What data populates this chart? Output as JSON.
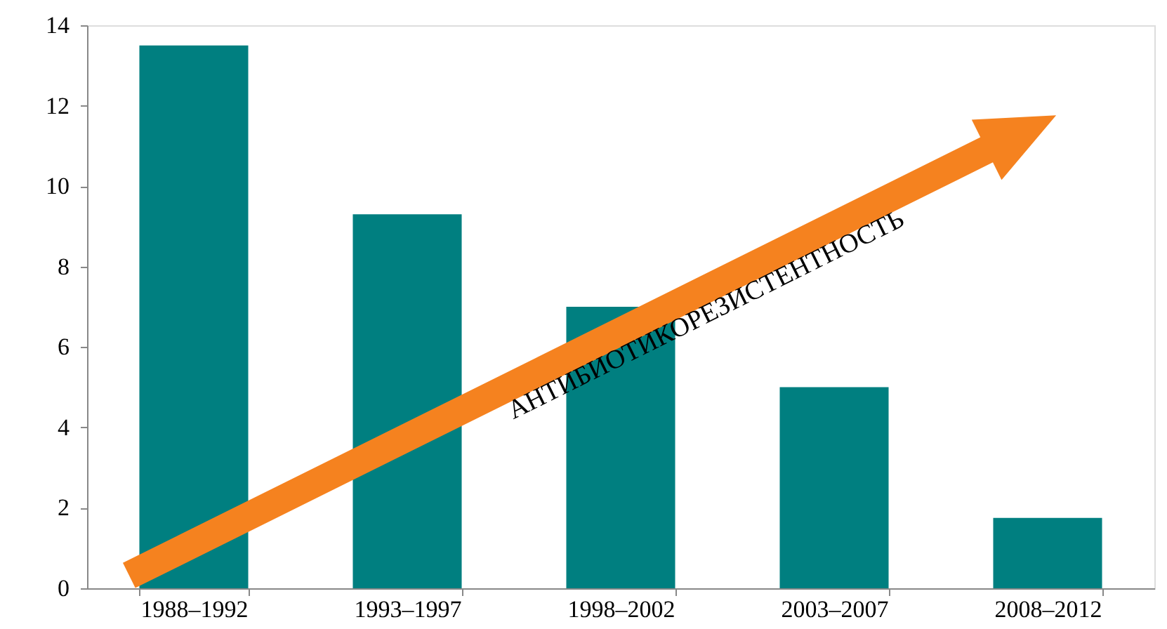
{
  "chart_data": {
    "type": "bar",
    "categories": [
      "1988–1992",
      "1993–1997",
      "1998–2002",
      "2003–2007",
      "2008–2012"
    ],
    "values": [
      13.5,
      9.3,
      7.0,
      5.0,
      1.75
    ],
    "color": "#007f80",
    "ylim": [
      0,
      14
    ],
    "yticks": [
      0,
      2,
      4,
      6,
      8,
      10,
      12,
      14
    ],
    "grid": false,
    "annotations": [
      "АНТИБИОТИКОРЕЗИСТЕНТНОСТЬ"
    ]
  }
}
